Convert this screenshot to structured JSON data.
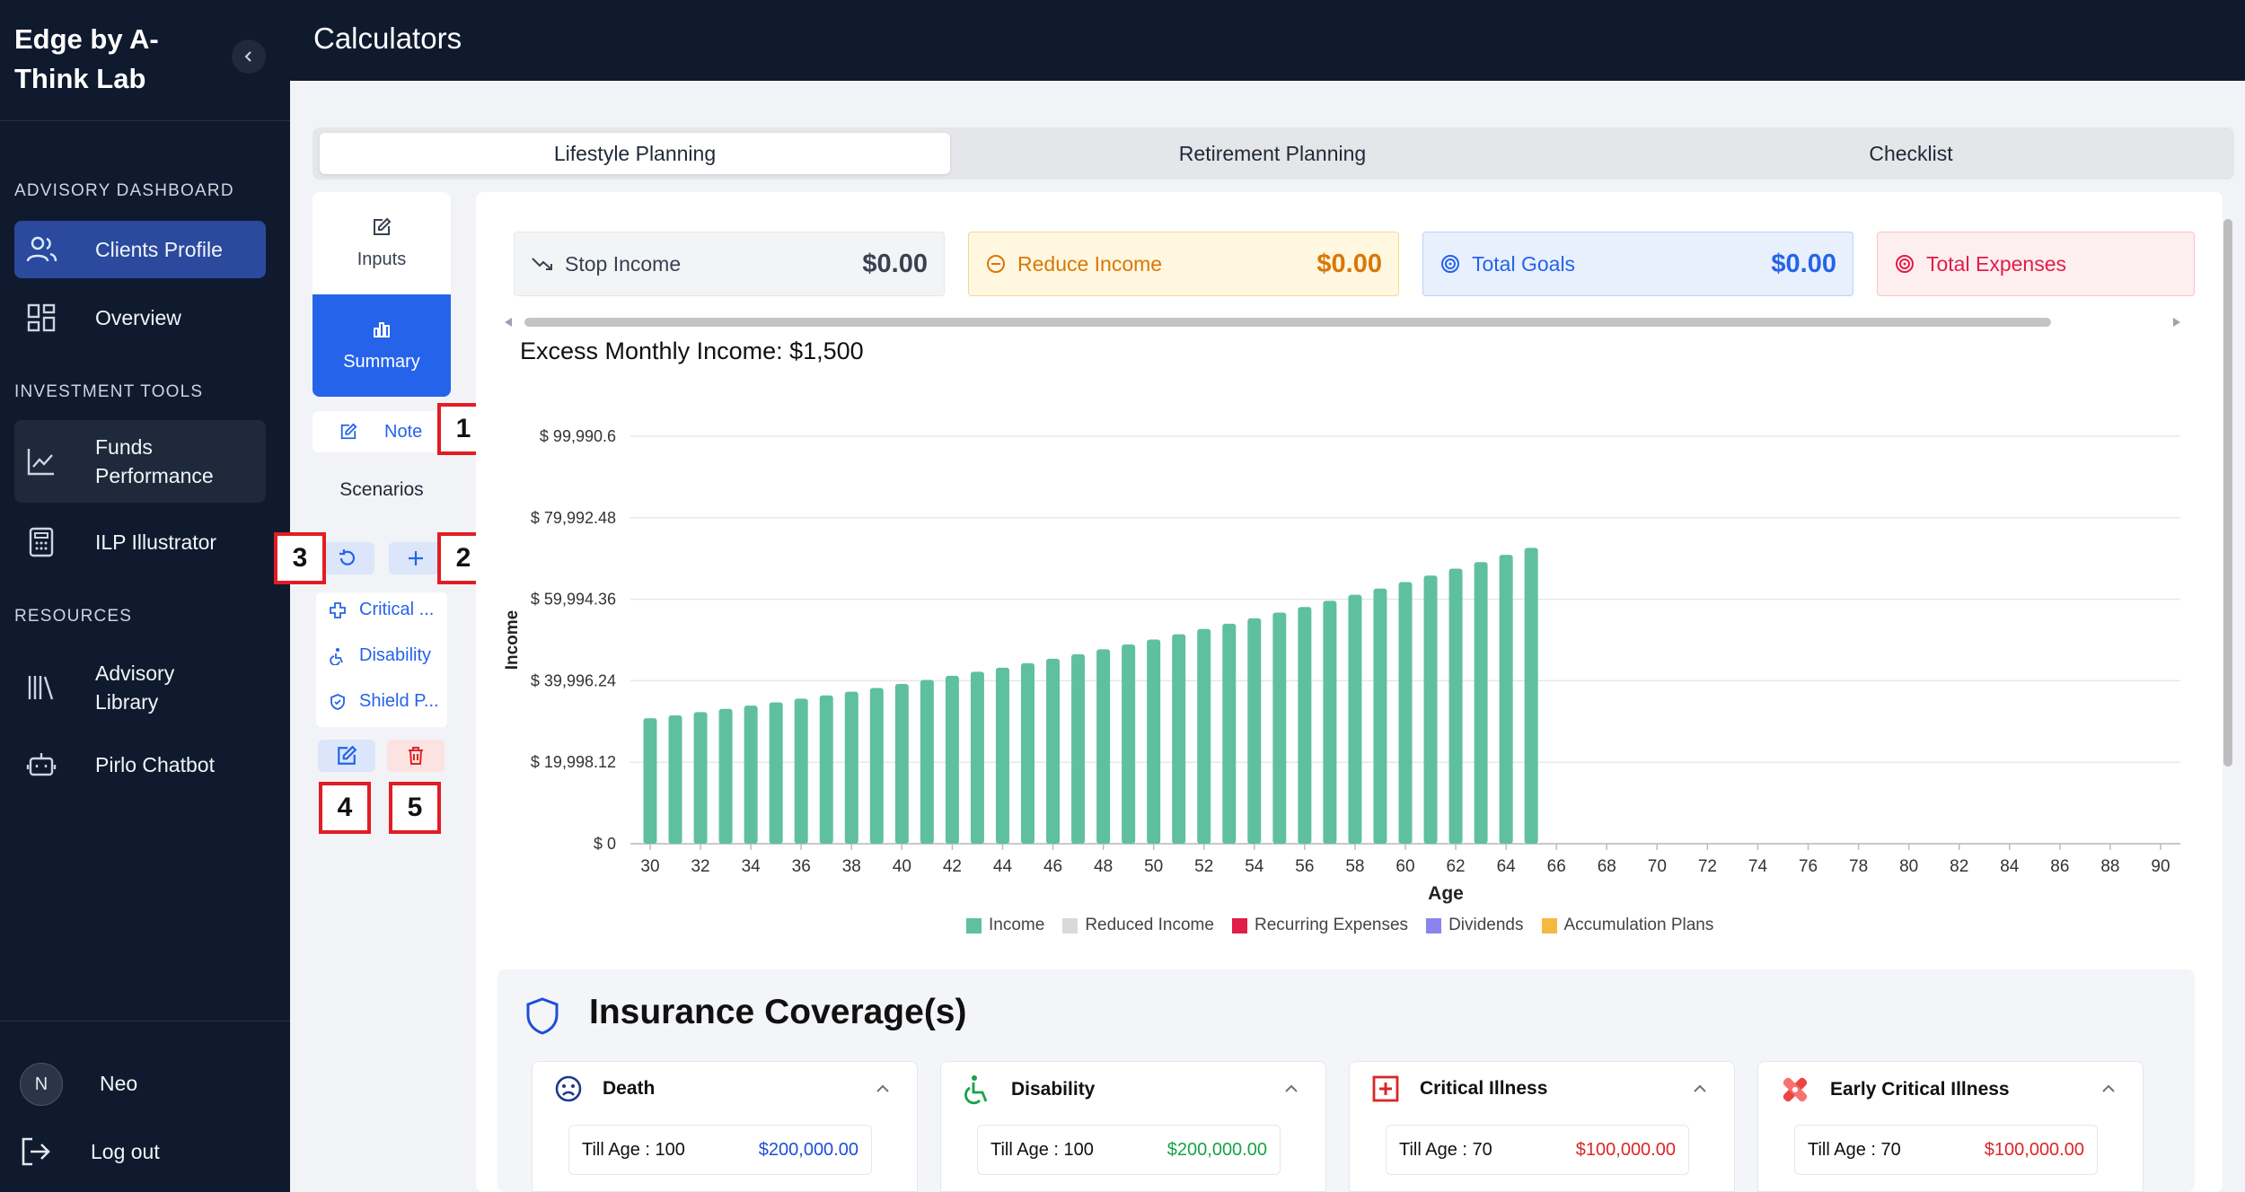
{
  "app": {
    "brand": "Edge by A-Think Lab",
    "page_title": "Calculators"
  },
  "sidebar": {
    "sections": [
      {
        "label": "ADVISORY DASHBOARD",
        "items": [
          {
            "label": "Clients Profile",
            "icon": "users-icon"
          },
          {
            "label": "Overview",
            "icon": "grid-icon"
          }
        ]
      },
      {
        "label": "INVESTMENT TOOLS",
        "items": [
          {
            "label": "Funds Performance",
            "icon": "line-chart-icon"
          },
          {
            "label": "ILP Illustrator",
            "icon": "calculator-icon"
          }
        ]
      },
      {
        "label": "RESOURCES",
        "items": [
          {
            "label": "Advisory Library",
            "icon": "library-icon"
          },
          {
            "label": "Pirlo Chatbot",
            "icon": "bot-icon"
          }
        ]
      }
    ],
    "user": {
      "initial": "N",
      "name": "Neo"
    },
    "logout_label": "Log out"
  },
  "tabs": [
    {
      "label": "Lifestyle Planning",
      "active": true
    },
    {
      "label": "Retirement Planning"
    },
    {
      "label": "Checklist"
    }
  ],
  "side_panel": {
    "inputs_label": "Inputs",
    "summary_label": "Summary",
    "note_label": "Note",
    "scenarios_label": "Scenarios",
    "scenarios": [
      {
        "label": "Critical ...",
        "icon": "plus-outline-icon"
      },
      {
        "label": "Disability",
        "icon": "accessibility-icon"
      },
      {
        "label": "Shield P...",
        "icon": "shield-icon"
      }
    ]
  },
  "annotations": [
    "1",
    "2",
    "3",
    "4",
    "5"
  ],
  "stats": [
    {
      "label": "Stop Income",
      "value": "$0.00",
      "color": "#374151"
    },
    {
      "label": "Reduce Income",
      "value": "$0.00",
      "color": "#d97706"
    },
    {
      "label": "Total Goals",
      "value": "$0.00",
      "color": "#2563eb"
    },
    {
      "label": "Total Expenses",
      "value": "",
      "color": "#e11d48"
    }
  ],
  "excess_income": "Excess Monthly Income: $1,500",
  "chart_data": {
    "type": "bar",
    "xlabel": "Age",
    "ylabel": "Income",
    "ylim": [
      0,
      99990.6
    ],
    "yticks": [
      "$ 0",
      "$ 19,998.12",
      "$ 39,996.24",
      "$ 59,994.36",
      "$ 79,992.48",
      "$ 99,990.6"
    ],
    "xticks": [
      30,
      32,
      34,
      36,
      38,
      40,
      42,
      44,
      46,
      48,
      50,
      52,
      54,
      56,
      58,
      60,
      62,
      64,
      66,
      68,
      70,
      72,
      74,
      76,
      78,
      80,
      82,
      84,
      86,
      88,
      90
    ],
    "x": [
      30,
      31,
      32,
      33,
      34,
      35,
      36,
      37,
      38,
      39,
      40,
      41,
      42,
      43,
      44,
      45,
      46,
      47,
      48,
      49,
      50,
      51,
      52,
      53,
      54,
      55,
      56,
      57,
      58,
      59,
      60,
      61,
      62,
      63,
      64,
      65
    ],
    "series": [
      {
        "name": "Income",
        "color": "#5fc0a0",
        "values": [
          30800,
          31500,
          32300,
          33100,
          33900,
          34700,
          35600,
          36400,
          37300,
          38200,
          39200,
          40200,
          41200,
          42200,
          43200,
          44300,
          45400,
          46500,
          47700,
          48900,
          50100,
          51400,
          52700,
          54000,
          55300,
          56700,
          58100,
          59600,
          61100,
          62600,
          64200,
          65800,
          67500,
          69100,
          70900,
          72600
        ]
      }
    ],
    "legend": [
      {
        "name": "Income",
        "color": "#5fc0a0"
      },
      {
        "name": "Reduced Income",
        "color": "#d9d9d9"
      },
      {
        "name": "Recurring Expenses",
        "color": "#e11d48"
      },
      {
        "name": "Dividends",
        "color": "#8b83f0"
      },
      {
        "name": "Accumulation Plans",
        "color": "#f5b942"
      }
    ],
    "legend_position": "bottom"
  },
  "insurance": {
    "title": "Insurance Coverage(s)",
    "cards": [
      {
        "name": "Death",
        "till": "Till Age : 100",
        "amount": "$200,000.00",
        "color": "#1d4ed8",
        "icon": "sad-face-icon"
      },
      {
        "name": "Disability",
        "till": "Till Age : 100",
        "amount": "$200,000.00",
        "color": "#16a34a",
        "icon": "wheelchair-icon"
      },
      {
        "name": "Critical Illness",
        "till": "Till Age : 70",
        "amount": "$100,000.00",
        "color": "#dc2626",
        "icon": "medical-cross-icon"
      },
      {
        "name": "Early Critical Illness",
        "till": "Till Age : 70",
        "amount": "$100,000.00",
        "color": "#dc2626",
        "icon": "bandage-icon"
      }
    ]
  }
}
